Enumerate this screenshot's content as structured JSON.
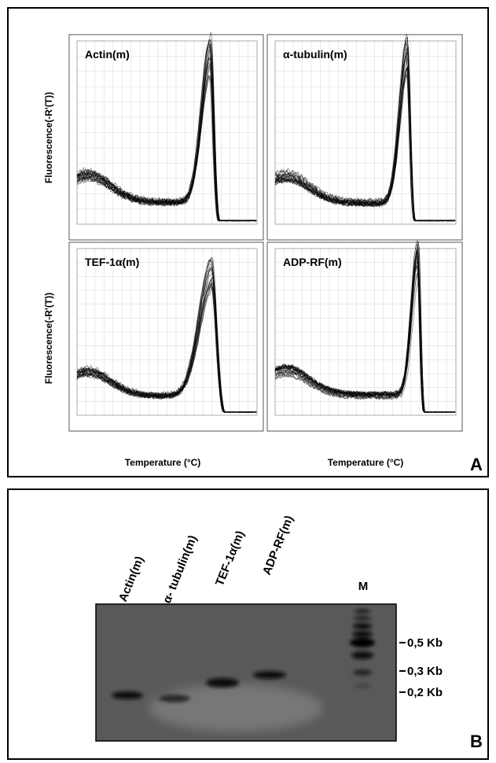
{
  "panel_a": {
    "label": "A",
    "y_axis_label": "Fluorescence(-R'(T))",
    "x_axis_label": "Temperature (°C)",
    "plots": [
      {
        "title": "Actin(m)"
      },
      {
        "title": "α-tubulin(m)"
      },
      {
        "title": "TEF-1α(m)"
      },
      {
        "title": "ADP-RF(m)"
      }
    ]
  },
  "panel_b": {
    "label": "B",
    "lanes": [
      "Actin(m)",
      "α- tubulin(m)",
      "TEF-1α(m)",
      "ADP-RF(m)"
    ],
    "marker_lane": "M",
    "marker_sizes": [
      "0,5 Kb",
      "0,3 Kb",
      "0,2 Kb"
    ]
  }
}
